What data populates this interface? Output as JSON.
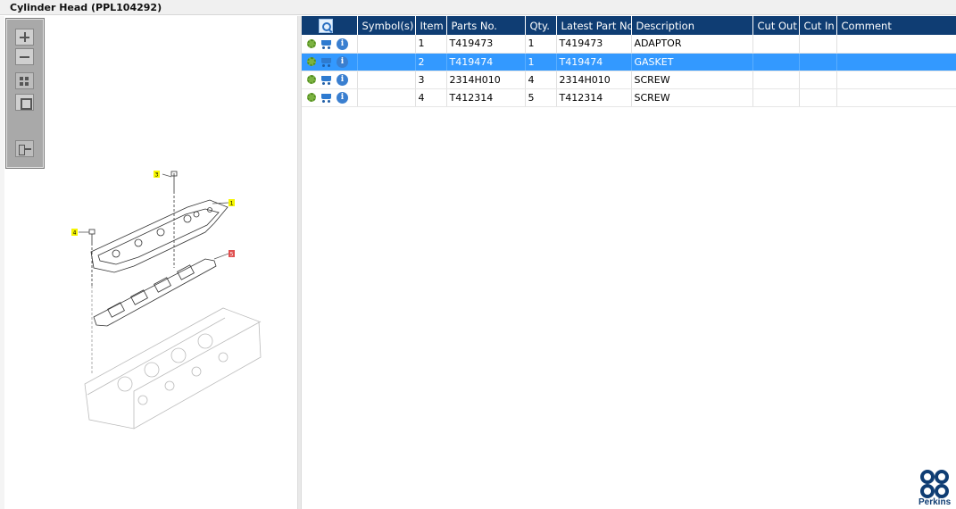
{
  "window": {
    "title": "Cylinder Head (PPL104292)"
  },
  "toolbox": {
    "tools": [
      "zoom-in",
      "zoom-out",
      "fit-to-window",
      "actual-size",
      "export"
    ]
  },
  "diagram": {
    "callouts": [
      "3",
      "1",
      "4",
      "5"
    ]
  },
  "grid": {
    "columns": [
      "Symbol(s)",
      "Item",
      "Parts No.",
      "Qty.",
      "Latest Part No.",
      "Description",
      "Cut Out",
      "Cut In",
      "Comment"
    ],
    "rows": [
      {
        "symbols": "",
        "item": "1",
        "part_no": "T419473",
        "qty": "1",
        "latest_part_no": "T419473",
        "description": "ADAPTOR",
        "cut_out": "",
        "cut_in": "",
        "comment": ""
      },
      {
        "symbols": "",
        "item": "2",
        "part_no": "T419474",
        "qty": "1",
        "latest_part_no": "T419474",
        "description": "GASKET",
        "cut_out": "",
        "cut_in": "",
        "comment": "",
        "selected": true
      },
      {
        "symbols": "",
        "item": "3",
        "part_no": "2314H010",
        "qty": "4",
        "latest_part_no": "2314H010",
        "description": "SCREW",
        "cut_out": "",
        "cut_in": "",
        "comment": ""
      },
      {
        "symbols": "",
        "item": "4",
        "part_no": "T412314",
        "qty": "5",
        "latest_part_no": "T412314",
        "description": "SCREW",
        "cut_out": "",
        "cut_in": "",
        "comment": ""
      }
    ]
  },
  "brand": {
    "name": "Perkins",
    "color": "#0f3d73"
  },
  "colors": {
    "header_bg": "#0f3d73",
    "selected_row": "#3399ff",
    "callout": "#f5f500"
  }
}
